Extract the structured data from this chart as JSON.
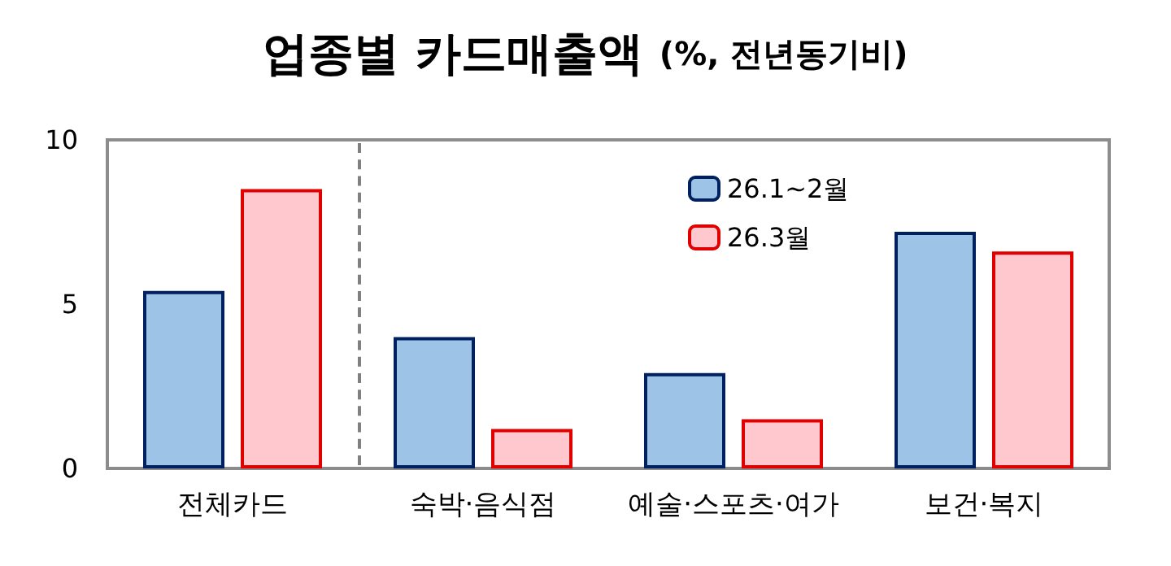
{
  "chart_data": {
    "type": "bar",
    "title": "업종별 카드매출액",
    "subtitle": "(%, 전년동기비)",
    "categories": [
      "전체카드",
      "숙박·음식점",
      "예술·스포츠·여가",
      "보건·복지"
    ],
    "series": [
      {
        "name": "26.1~2월",
        "color": "#9dc3e6",
        "values": [
          5.4,
          4.0,
          2.9,
          7.2
        ]
      },
      {
        "name": "26.3월",
        "color": "#ffc7ce",
        "values": [
          8.5,
          1.2,
          1.5,
          6.6
        ]
      }
    ],
    "ylim": [
      0,
      10
    ],
    "yticks": [
      0,
      5,
      10
    ],
    "grid": false,
    "legend": "top"
  }
}
